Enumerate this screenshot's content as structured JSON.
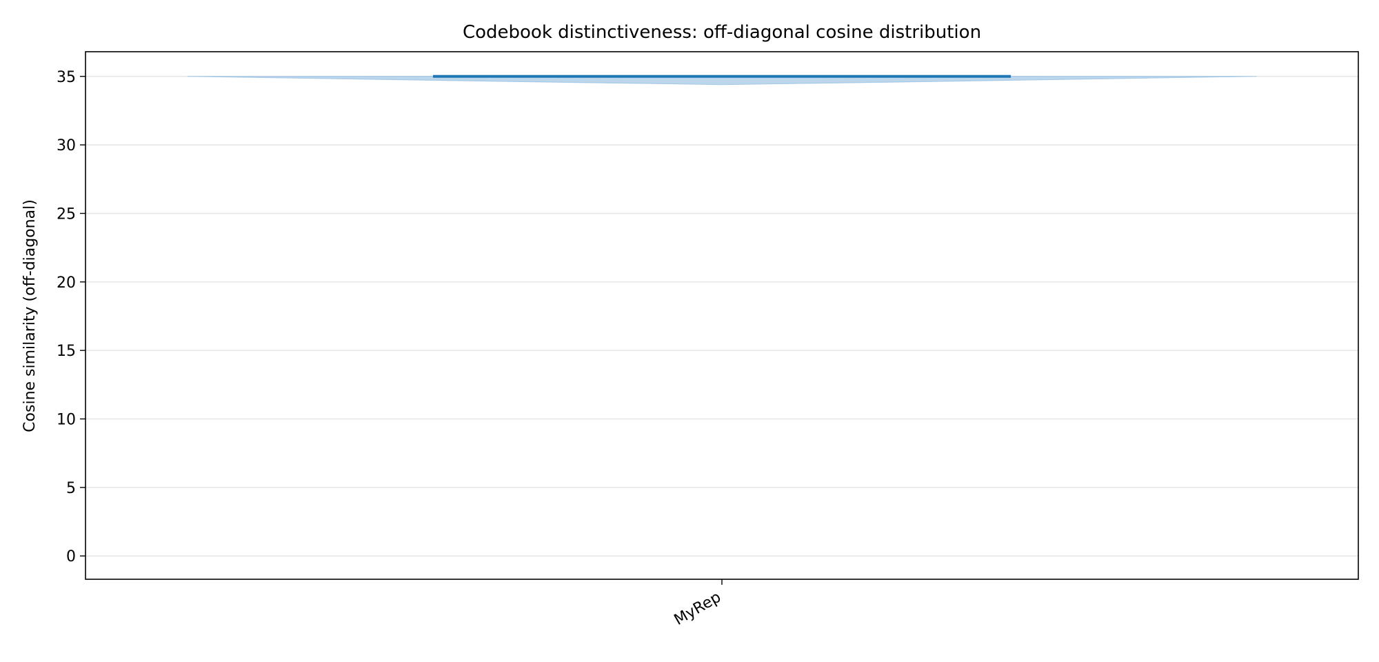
{
  "chart_data": {
    "type": "violin",
    "title": "Codebook distinctiveness: off-diagonal cosine distribution",
    "xlabel": "",
    "ylabel": "Cosine similarity (off-diagonal)",
    "categories": [
      "MyRep"
    ],
    "series": [
      {
        "category": "MyRep",
        "median": 35.0,
        "min": 34.4,
        "max": 35.0,
        "mode": 35.0
      }
    ],
    "yticks": [
      0,
      5,
      10,
      15,
      20,
      25,
      30,
      35
    ],
    "ylim": [
      -1.7,
      36.8
    ],
    "grid": "y",
    "legend": "none",
    "colors": {
      "violin_fill": "#a6c8e6",
      "median_line": "#1f77b4",
      "grid": "#e6e6e6",
      "frame": "#000000"
    }
  }
}
